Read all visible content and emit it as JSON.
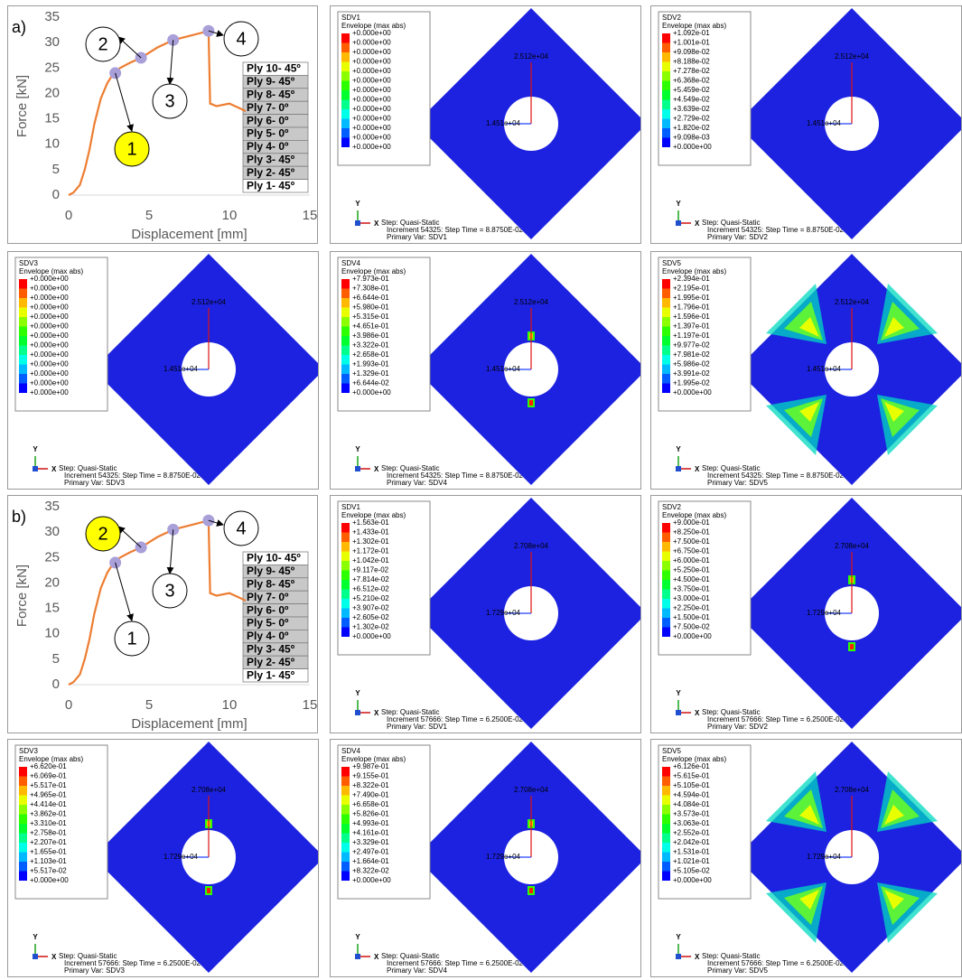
{
  "chart_data": [
    {
      "type": "line",
      "label": "a)",
      "xlabel": "Displacement [mm]",
      "ylabel": "Force [kN]",
      "x": [
        0,
        0.3,
        0.7,
        1,
        1.3,
        1.6,
        2,
        2.4,
        2.8,
        3.2,
        3.8,
        4.5,
        5.5,
        6.5,
        7.5,
        8.6,
        8.7,
        8.8,
        9.2,
        10,
        10.7,
        11
      ],
      "series": [
        {
          "color": "#ed7d31",
          "values": [
            0,
            0.5,
            2,
            5,
            9,
            14,
            19,
            22,
            24,
            25,
            26,
            27,
            29,
            30.5,
            31.3,
            32.2,
            32.4,
            18,
            17.5,
            18,
            17,
            16.5
          ]
        }
      ],
      "markers": {
        "color": "#a99fd9",
        "x": [
          2.9,
          4.5,
          6.5,
          8.7
        ],
        "values": [
          24,
          27,
          30.5,
          32.3
        ]
      },
      "annotations": [
        "1",
        "2",
        "3",
        "4"
      ],
      "highlight": 0,
      "plies": [
        "Ply 10- 45º",
        "Ply 9- 45º",
        "Ply 8- 45º",
        "Ply 7- 0º",
        "Ply 6- 0º",
        "Ply 5- 0º",
        "Ply 4- 0º",
        "Ply 3- 45º",
        "Ply 2- 45º",
        "Ply 1- 45º"
      ],
      "xlim": [
        0,
        15
      ],
      "ylim": [
        0,
        35
      ],
      "xticks": [
        0,
        5,
        10,
        15
      ],
      "yticks": [
        0,
        5,
        10,
        15,
        20,
        25,
        30,
        35
      ]
    },
    {
      "type": "line",
      "label": "b)",
      "xlabel": "Displacement [mm]",
      "ylabel": "Force [kN]",
      "x": [
        0,
        0.3,
        0.7,
        1,
        1.3,
        1.6,
        2,
        2.4,
        2.8,
        3.2,
        3.8,
        4.5,
        5.5,
        6.5,
        7.5,
        8.6,
        8.7,
        8.8,
        9.2,
        10,
        10.7,
        11
      ],
      "series": [
        {
          "color": "#ed7d31",
          "values": [
            0,
            0.5,
            2,
            5,
            9,
            14,
            19,
            22,
            24,
            25,
            26,
            27,
            29,
            30.5,
            31.3,
            32.2,
            32.4,
            18,
            17.5,
            18,
            17,
            16.5
          ]
        }
      ],
      "markers": {
        "color": "#a99fd9",
        "x": [
          2.9,
          4.5,
          6.5,
          8.7
        ],
        "values": [
          24,
          27,
          30.5,
          32.3
        ]
      },
      "annotations": [
        "1",
        "2",
        "3",
        "4"
      ],
      "highlight": 1,
      "plies": [
        "Ply 10- 45º",
        "Ply 9- 45º",
        "Ply 8- 45º",
        "Ply 7- 0º",
        "Ply 6- 0º",
        "Ply 5- 0º",
        "Ply 4- 0º",
        "Ply 3- 45º",
        "Ply 2- 45º",
        "Ply 1- 45º"
      ],
      "xlim": [
        0,
        15
      ],
      "ylim": [
        0,
        35
      ],
      "xticks": [
        0,
        5,
        10,
        15
      ],
      "yticks": [
        0,
        5,
        10,
        15,
        20,
        25,
        30,
        35
      ]
    }
  ],
  "contours": [
    {
      "title": "SDV1",
      "subtitle": "Envelope (max abs)",
      "legend": [
        "+0.000e+00",
        "+0.000e+00",
        "+0.000e+00",
        "+0.000e+00",
        "+0.000e+00",
        "+0.000e+00",
        "+0.000e+00",
        "+0.000e+00",
        "+0.000e+00",
        "+0.000e+00",
        "+0.000e+00",
        "+0.000e+00",
        "+0.000e+00"
      ],
      "top_label": "2.512e+04",
      "left_label": "1.451e+04",
      "axis_y": "Y",
      "axis_x": "X",
      "step": "Step: Quasi-Static",
      "increment": "Increment    54325: Step Time = 8.8750E-02",
      "primary": "Primary Var: SDV1"
    },
    {
      "title": "SDV2",
      "subtitle": "Envelope (max abs)",
      "legend": [
        "+1.092e-01",
        "+1.001e-01",
        "+9.098e-02",
        "+8.188e-02",
        "+7.278e-02",
        "+6.368e-02",
        "+5.459e-02",
        "+4.549e-02",
        "+3.639e-02",
        "+2.729e-02",
        "+1.820e-02",
        "+9.098e-03",
        "+0.000e+00"
      ],
      "top_label": "2.512e+04",
      "left_label": "1.451e+04",
      "axis_y": "Y",
      "axis_x": "X",
      "step": "Step: Quasi-Static",
      "increment": "Increment    54325: Step Time = 8.8750E-02",
      "primary": "Primary Var: SDV2"
    },
    {
      "title": "SDV3",
      "subtitle": "Envelope (max abs)",
      "legend": [
        "+0.000e+00",
        "+0.000e+00",
        "+0.000e+00",
        "+0.000e+00",
        "+0.000e+00",
        "+0.000e+00",
        "+0.000e+00",
        "+0.000e+00",
        "+0.000e+00",
        "+0.000e+00",
        "+0.000e+00",
        "+0.000e+00",
        "+0.000e+00"
      ],
      "top_label": "2.512e+04",
      "left_label": "1.451e+04",
      "axis_y": "Y",
      "axis_x": "X",
      "step": "Step: Quasi-Static",
      "increment": "Increment    54325: Step Time = 8.8750E-02",
      "primary": "Primary Var: SDV3"
    },
    {
      "title": "SDV4",
      "subtitle": "Envelope (max abs)",
      "legend": [
        "+7.973e-01",
        "+7.308e-01",
        "+6.644e-01",
        "+5.980e-01",
        "+5.315e-01",
        "+4.651e-01",
        "+3.986e-01",
        "+3.322e-01",
        "+2.658e-01",
        "+1.993e-01",
        "+1.329e-01",
        "+6.644e-02",
        "+0.000e+00"
      ],
      "top_label": "2.512e+04",
      "left_label": "1.451e+04",
      "axis_y": "Y",
      "axis_x": "X",
      "step": "Step: Quasi-Static",
      "increment": "Increment    54325: Step Time = 8.8750E-02",
      "primary": "Primary Var: SDV4"
    },
    {
      "title": "SDV5",
      "subtitle": "Envelope (max abs)",
      "legend": [
        "+2.394e-01",
        "+2.195e-01",
        "+1.995e-01",
        "+1.796e-01",
        "+1.596e-01",
        "+1.397e-01",
        "+1.197e-01",
        "+9.977e-02",
        "+7.981e-02",
        "+5.986e-02",
        "+3.991e-02",
        "+1.995e-02",
        "+0.000e+00"
      ],
      "top_label": "2.512e+04",
      "left_label": "1.451e+04",
      "axis_y": "Y",
      "axis_x": "X",
      "step": "Step: Quasi-Static",
      "increment": "Increment    54325: Step Time = 8.8750E-02",
      "primary": "Primary Var: SDV5"
    },
    {
      "title": "SDV1",
      "subtitle": "Envelope (max abs)",
      "legend": [
        "+1.563e-01",
        "+1.433e-01",
        "+1.302e-01",
        "+1.172e-01",
        "+1.042e-01",
        "+9.117e-02",
        "+7.814e-02",
        "+6.512e-02",
        "+5.210e-02",
        "+3.907e-02",
        "+2.605e-02",
        "+1.302e-02",
        "+0.000e+00"
      ],
      "top_label": "2.708e+04",
      "left_label": "1.729e+04",
      "axis_y": "Y",
      "axis_x": "X",
      "step": "Step: Quasi-Static",
      "increment": "Increment    57666: Step Time = 6.2500E-02",
      "primary": "Primary Var: SDV1"
    },
    {
      "title": "SDV2",
      "subtitle": "Envelope (max abs)",
      "legend": [
        "+9.000e-01",
        "+8.250e-01",
        "+7.500e-01",
        "+6.750e-01",
        "+6.000e-01",
        "+5.250e-01",
        "+4.500e-01",
        "+3.750e-01",
        "+3.000e-01",
        "+2.250e-01",
        "+1.500e-01",
        "+7.500e-02",
        "+0.000e+00"
      ],
      "top_label": "2.708e+04",
      "left_label": "1.729e+04",
      "axis_y": "Y",
      "axis_x": "X",
      "step": "Step: Quasi-Static",
      "increment": "Increment    57666: Step Time = 6.2500E-02",
      "primary": "Primary Var: SDV2"
    },
    {
      "title": "SDV3",
      "subtitle": "Envelope (max abs)",
      "legend": [
        "+6.620e-01",
        "+6.069e-01",
        "+5.517e-01",
        "+4.965e-01",
        "+4.414e-01",
        "+3.862e-01",
        "+3.310e-01",
        "+2.758e-01",
        "+2.207e-01",
        "+1.655e-01",
        "+1.103e-01",
        "+5.517e-02",
        "+0.000e+00"
      ],
      "top_label": "2.708e+04",
      "left_label": "1.729e+04",
      "axis_y": "Y",
      "axis_x": "X",
      "step": "Step: Quasi-Static",
      "increment": "Increment    57666: Step Time = 6.2500E-02",
      "primary": "Primary Var: SDV3"
    },
    {
      "title": "SDV4",
      "subtitle": "Envelope (max abs)",
      "legend": [
        "+9.987e-01",
        "+9.155e-01",
        "+8.322e-01",
        "+7.490e-01",
        "+6.658e-01",
        "+5.826e-01",
        "+4.993e-01",
        "+4.161e-01",
        "+3.329e-01",
        "+2.497e-01",
        "+1.664e-01",
        "+8.322e-02",
        "+0.000e+00"
      ],
      "top_label": "2.708e+04",
      "left_label": "1.729e+04",
      "axis_y": "Y",
      "axis_x": "X",
      "step": "Step: Quasi-Static",
      "increment": "Increment    57666: Step Time = 6.2500E-02",
      "primary": "Primary Var: SDV4"
    },
    {
      "title": "SDV5",
      "subtitle": "Envelope (max abs)",
      "legend": [
        "+6.126e-01",
        "+5.615e-01",
        "+5.105e-01",
        "+4.594e-01",
        "+4.084e-01",
        "+3.573e-01",
        "+3.063e-01",
        "+2.552e-01",
        "+2.042e-01",
        "+1.531e-01",
        "+1.021e-01",
        "+5.105e-02",
        "+0.000e+00"
      ],
      "top_label": "2.708e+04",
      "left_label": "1.729e+04",
      "axis_y": "Y",
      "axis_x": "X",
      "step": "Step: Quasi-Static",
      "increment": "Increment    57666: Step Time = 6.2500E-02",
      "primary": "Primary Var: SDV5"
    }
  ]
}
